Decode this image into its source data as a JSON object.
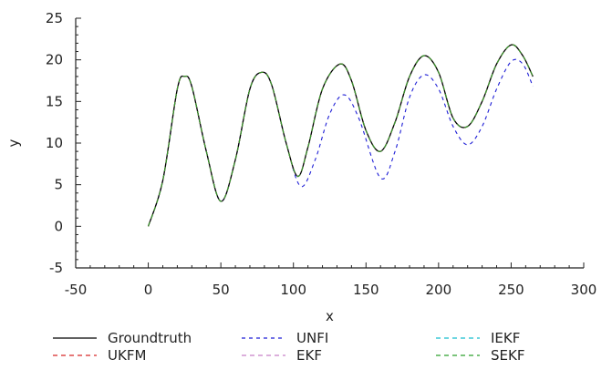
{
  "chart_data": {
    "type": "line",
    "xlabel": "x",
    "ylabel": "y",
    "xlim": [
      -50,
      300
    ],
    "ylim": [
      -5,
      25
    ],
    "xticks": [
      -50,
      0,
      50,
      100,
      150,
      200,
      250,
      300
    ],
    "yticks": [
      -5,
      0,
      5,
      10,
      15,
      20,
      25
    ],
    "grid": false,
    "legend_position": "bottom",
    "series": [
      {
        "name": "Groundtruth",
        "color": "#000000",
        "dash": "solid",
        "x": [
          0,
          10,
          20,
          25,
          30,
          40,
          50,
          60,
          70,
          78,
          85,
          95,
          103,
          110,
          120,
          132,
          140,
          150,
          160,
          170,
          180,
          190,
          200,
          210,
          220,
          230,
          240,
          250,
          258,
          265
        ],
        "y": [
          0,
          5.5,
          16.5,
          18,
          16.8,
          9,
          3,
          8,
          16.5,
          18.5,
          17,
          10,
          6,
          9.5,
          16.5,
          19.5,
          17.5,
          11.5,
          9,
          12.5,
          18,
          20.5,
          18.5,
          13,
          12,
          15,
          19.5,
          21.8,
          20.5,
          18
        ]
      },
      {
        "name": "UKFM",
        "color": "#d62728",
        "dash": "long",
        "x": [
          0,
          10,
          20,
          25,
          30,
          40,
          50,
          60,
          70,
          78,
          85,
          95,
          103,
          110,
          120,
          132,
          140,
          150,
          160,
          170,
          180,
          190,
          200,
          210,
          220,
          230,
          240,
          250,
          258,
          265
        ],
        "y": [
          0,
          5.5,
          16.5,
          18,
          16.8,
          9,
          3,
          8,
          16.5,
          18.5,
          17,
          10,
          6,
          9.5,
          16.5,
          19.5,
          17.5,
          11.5,
          9,
          12.5,
          18,
          20.5,
          18.5,
          13,
          12,
          15,
          19.5,
          21.8,
          20.5,
          18
        ]
      },
      {
        "name": "UNFI",
        "color": "#1f1fd6",
        "dash": "medium",
        "x": [
          0,
          10,
          20,
          25,
          30,
          40,
          50,
          60,
          70,
          78,
          85,
          95,
          105,
          115,
          125,
          135,
          145,
          160,
          170,
          180,
          190,
          200,
          210,
          220,
          230,
          240,
          250,
          258,
          265
        ],
        "y": [
          0,
          5.5,
          16.5,
          18,
          16.8,
          9,
          3,
          8,
          16.5,
          18.5,
          17,
          10,
          4.8,
          8,
          13.5,
          15.8,
          13,
          5.8,
          9,
          15.5,
          18.2,
          16.5,
          12,
          9.8,
          12,
          16.5,
          19.8,
          19.5,
          16.8
        ]
      },
      {
        "name": "EKF",
        "color": "#c77fc7",
        "dash": "long",
        "x": [
          0,
          10,
          20,
          25,
          30,
          40,
          50,
          60,
          70,
          78,
          85,
          95,
          103,
          110,
          120,
          132,
          140,
          150,
          160,
          170,
          180,
          190,
          200,
          210,
          220,
          230,
          240,
          250,
          258,
          265
        ],
        "y": [
          0,
          5.5,
          16.5,
          18,
          16.8,
          9,
          3,
          8,
          16.5,
          18.5,
          17,
          10,
          6,
          9.5,
          16.5,
          19.5,
          17.5,
          11.5,
          9,
          12.5,
          18,
          20.5,
          18.5,
          13,
          12,
          15,
          19.5,
          21.8,
          20.5,
          18
        ]
      },
      {
        "name": "IEKF",
        "color": "#17becf",
        "dash": "long",
        "x": [
          0,
          10,
          20,
          25,
          30,
          40,
          50,
          60,
          70,
          78,
          85,
          95,
          103,
          110,
          120,
          132,
          140,
          150,
          160,
          170,
          180,
          190,
          200,
          210,
          220,
          230,
          240,
          250,
          258,
          265
        ],
        "y": [
          0,
          5.5,
          16.5,
          18,
          16.8,
          9,
          3,
          8,
          16.5,
          18.5,
          17,
          10,
          6,
          9.5,
          16.5,
          19.5,
          17.5,
          11.5,
          9,
          12.5,
          18,
          20.5,
          18.5,
          13,
          12,
          15,
          19.5,
          21.8,
          20.5,
          18
        ]
      },
      {
        "name": "SEKF",
        "color": "#2ca02c",
        "dash": "long",
        "x": [
          0,
          10,
          20,
          25,
          30,
          40,
          50,
          60,
          70,
          78,
          85,
          95,
          103,
          110,
          120,
          132,
          140,
          150,
          160,
          170,
          180,
          190,
          200,
          210,
          220,
          230,
          240,
          250,
          258,
          265
        ],
        "y": [
          0,
          5.5,
          16.5,
          18,
          16.8,
          9,
          3,
          8,
          16.5,
          18.5,
          17,
          10,
          6,
          9.5,
          16.5,
          19.5,
          17.5,
          11.5,
          9,
          12.5,
          18,
          20.5,
          18.5,
          13,
          12,
          15,
          19.5,
          21.8,
          20.5,
          18
        ]
      }
    ]
  }
}
